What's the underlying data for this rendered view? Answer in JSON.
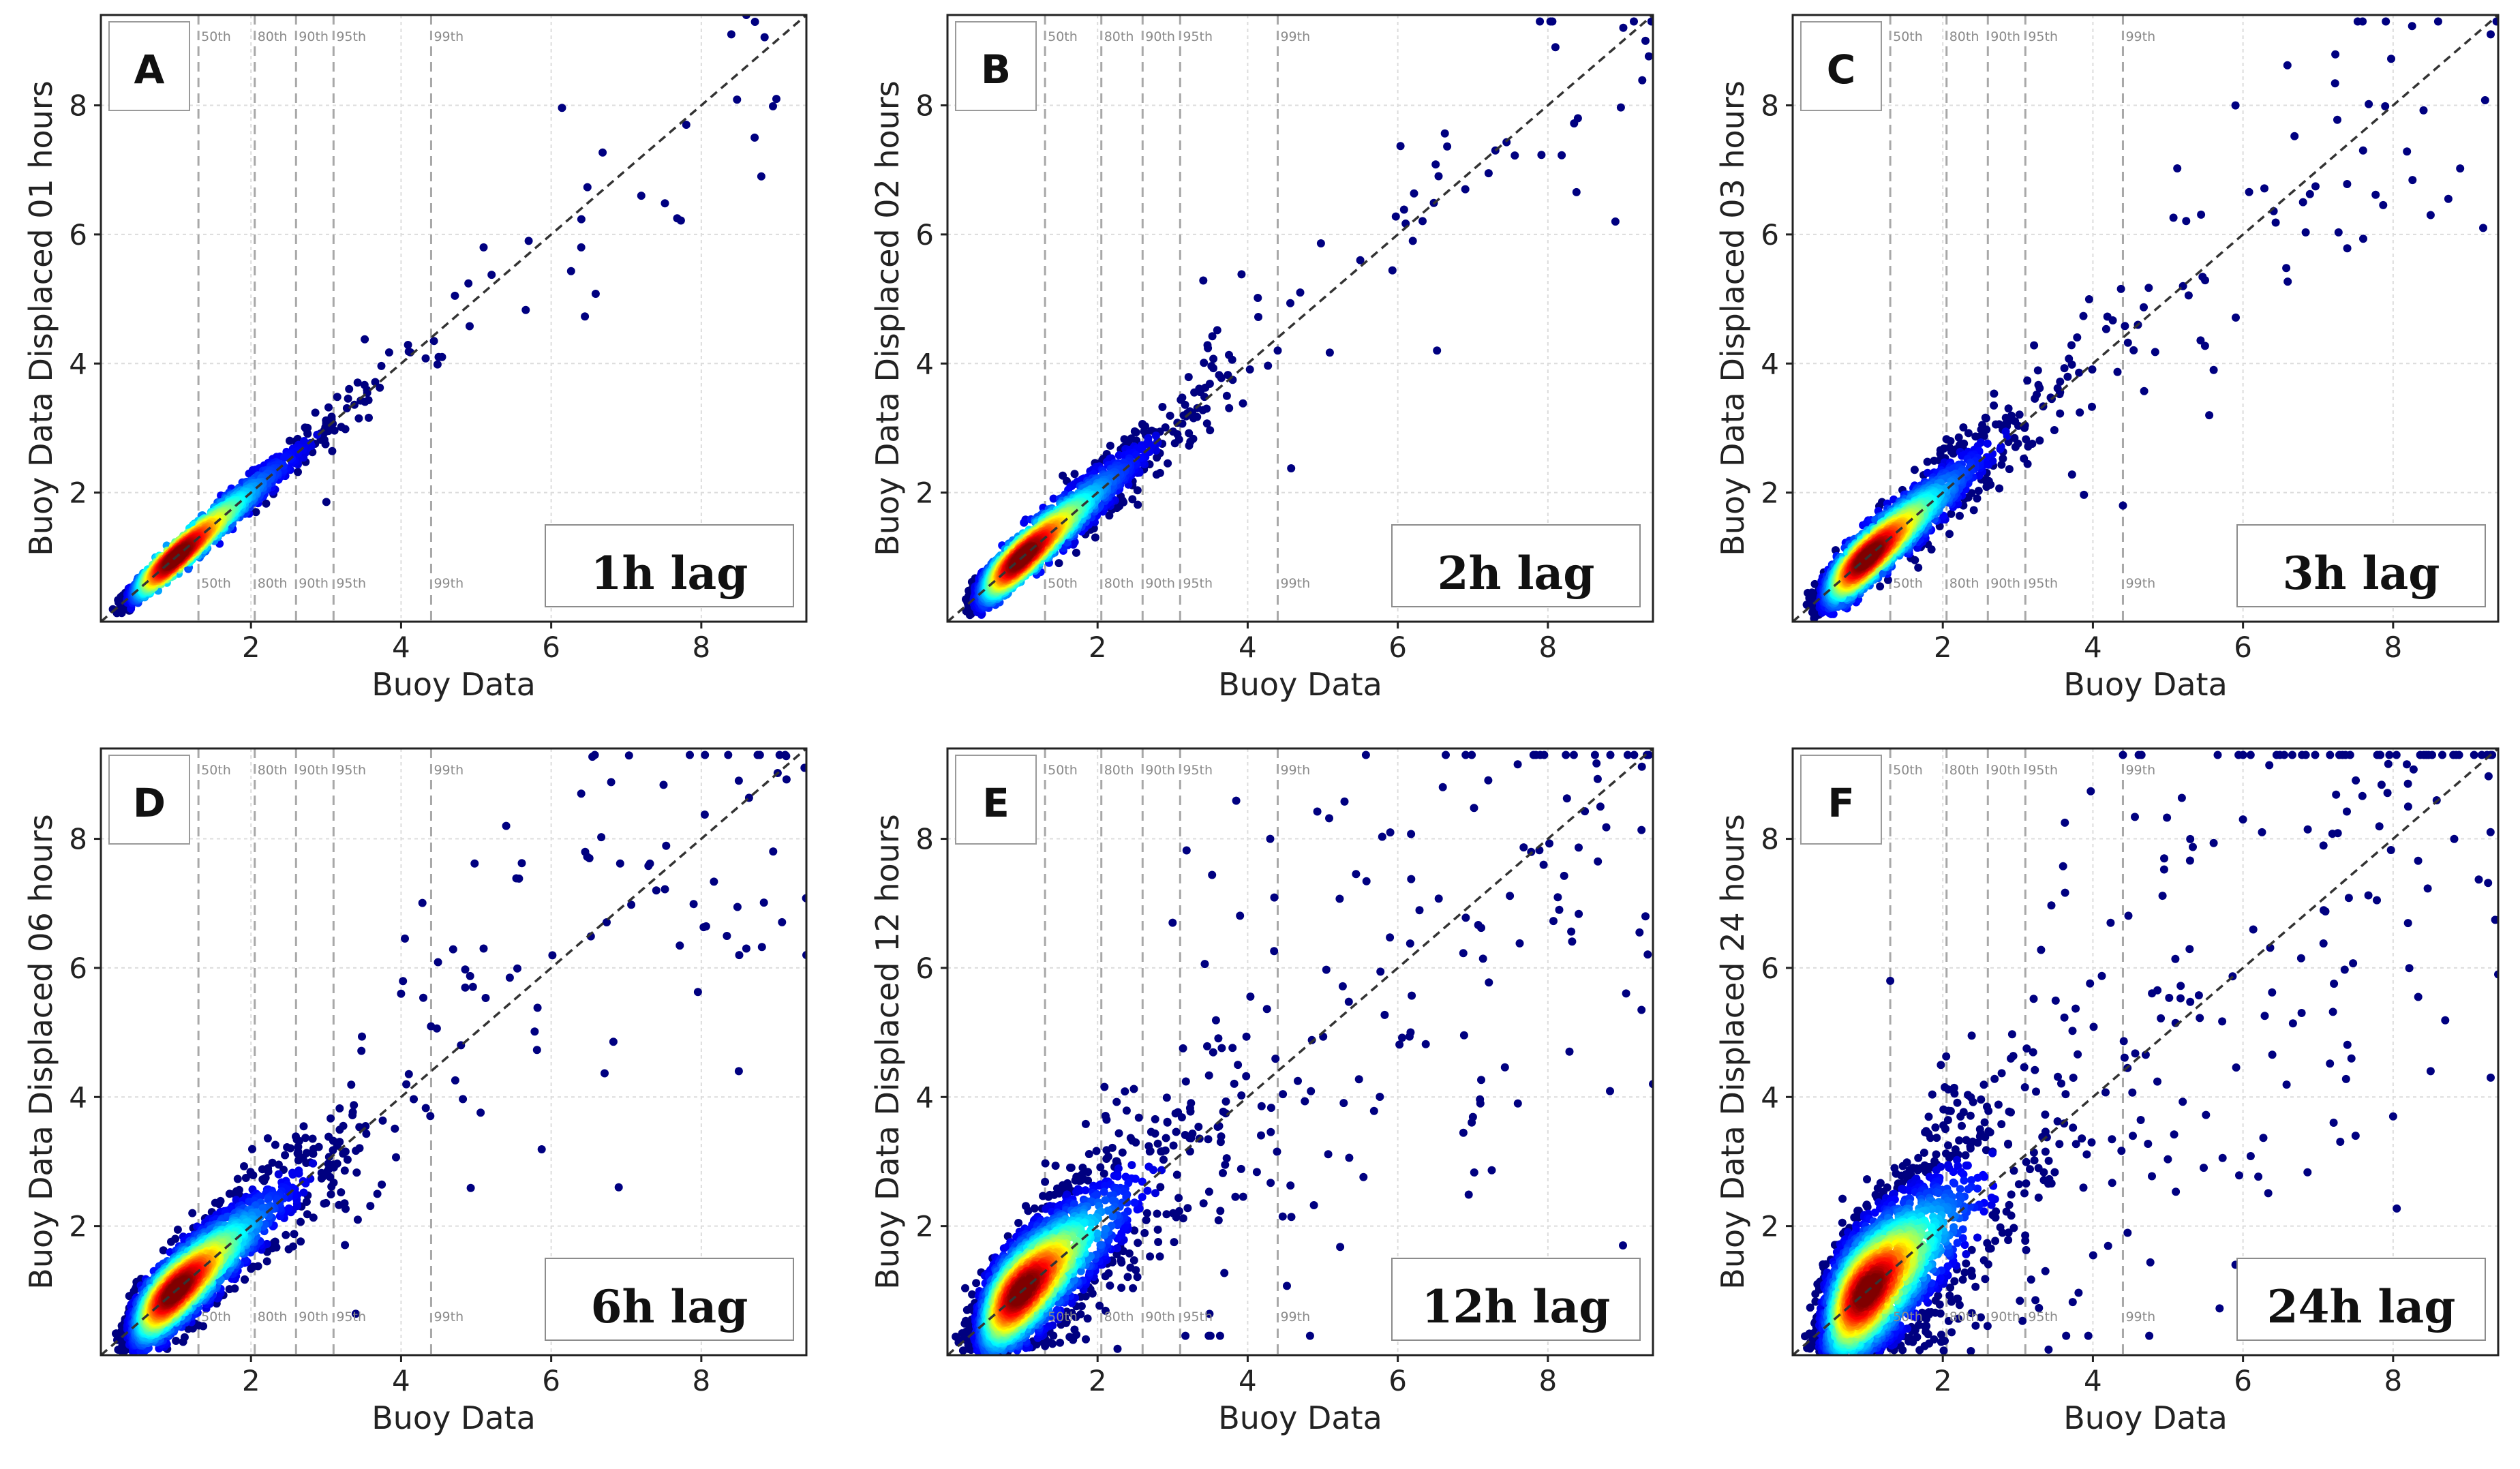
{
  "chart_data": [
    {
      "panel": "A",
      "type": "scatter",
      "lag_label": "1h lag",
      "xlabel": "Buoy Data",
      "ylabel": "Buoy Data Displaced 01 hours",
      "xlim": [
        0,
        9.4
      ],
      "ylim": [
        0,
        9.4
      ],
      "xticks": [
        2,
        4,
        6,
        8
      ],
      "yticks": [
        2,
        4,
        6,
        8
      ],
      "spread": 0.17,
      "outliers": 25,
      "percentiles": [
        {
          "label": "50th",
          "x": 1.3
        },
        {
          "label": "80th",
          "x": 2.05
        },
        {
          "label": "90th",
          "x": 2.6
        },
        {
          "label": "95th",
          "x": 3.1
        },
        {
          "label": "99th",
          "x": 4.4
        }
      ],
      "sample_points": [
        [
          8.6,
          9.4
        ],
        [
          8.4,
          9.1
        ],
        [
          9.0,
          8.1
        ],
        [
          8.8,
          6.9
        ],
        [
          7.8,
          7.7
        ],
        [
          7.2,
          6.6
        ],
        [
          6.4,
          5.8
        ],
        [
          5.7,
          5.9
        ],
        [
          5.1,
          5.8
        ],
        [
          4.5,
          4.1
        ]
      ]
    },
    {
      "panel": "B",
      "type": "scatter",
      "lag_label": "2h lag",
      "xlabel": "Buoy Data",
      "ylabel": "Buoy Data Displaced 02 hours",
      "xlim": [
        0,
        9.4
      ],
      "ylim": [
        0,
        9.4
      ],
      "xticks": [
        2,
        4,
        6,
        8
      ],
      "yticks": [
        2,
        4,
        6,
        8
      ],
      "spread": 0.28,
      "outliers": 45,
      "percentiles": [
        {
          "label": "50th",
          "x": 1.3
        },
        {
          "label": "80th",
          "x": 2.05
        },
        {
          "label": "90th",
          "x": 2.6
        },
        {
          "label": "95th",
          "x": 3.1
        },
        {
          "label": "99th",
          "x": 4.4
        }
      ],
      "sample_points": [
        [
          8.1,
          8.9
        ],
        [
          9.3,
          9.0
        ],
        [
          8.9,
          6.2
        ],
        [
          8.4,
          7.8
        ],
        [
          7.3,
          7.3
        ],
        [
          6.9,
          6.7
        ],
        [
          6.2,
          5.9
        ],
        [
          5.5,
          5.6
        ],
        [
          4.7,
          5.1
        ],
        [
          4.4,
          4.2
        ]
      ]
    },
    {
      "panel": "C",
      "type": "scatter",
      "lag_label": "3h lag",
      "xlabel": "Buoy Data",
      "ylabel": "Buoy Data Displaced 03 hours",
      "xlim": [
        0,
        9.4
      ],
      "ylim": [
        0,
        9.4
      ],
      "xticks": [
        2,
        4,
        6,
        8
      ],
      "yticks": [
        2,
        4,
        6,
        8
      ],
      "spread": 0.35,
      "outliers": 60,
      "percentiles": [
        {
          "label": "50th",
          "x": 1.3
        },
        {
          "label": "80th",
          "x": 2.05
        },
        {
          "label": "90th",
          "x": 2.6
        },
        {
          "label": "95th",
          "x": 3.1
        },
        {
          "label": "99th",
          "x": 4.4
        }
      ],
      "sample_points": [
        [
          8.6,
          9.3
        ],
        [
          9.3,
          9.1
        ],
        [
          9.2,
          6.1
        ],
        [
          8.5,
          6.3
        ],
        [
          7.6,
          7.3
        ],
        [
          6.8,
          6.5
        ],
        [
          5.9,
          8.0
        ],
        [
          5.2,
          5.2
        ],
        [
          4.6,
          4.6
        ],
        [
          4.4,
          1.8
        ]
      ]
    },
    {
      "panel": "D",
      "type": "scatter",
      "lag_label": "6h lag",
      "xlabel": "Buoy Data",
      "ylabel": "Buoy Data Displaced 06 hours",
      "xlim": [
        0,
        9.4
      ],
      "ylim": [
        0,
        9.4
      ],
      "xticks": [
        2,
        4,
        6,
        8
      ],
      "yticks": [
        2,
        4,
        6,
        8
      ],
      "spread": 0.5,
      "outliers": 90,
      "percentiles": [
        {
          "label": "50th",
          "x": 1.3
        },
        {
          "label": "80th",
          "x": 2.05
        },
        {
          "label": "90th",
          "x": 2.6
        },
        {
          "label": "95th",
          "x": 3.1
        },
        {
          "label": "99th",
          "x": 4.4
        }
      ],
      "sample_points": [
        [
          8.5,
          8.9
        ],
        [
          9.4,
          6.2
        ],
        [
          8.6,
          6.3
        ],
        [
          8.5,
          4.4
        ],
        [
          7.4,
          7.2
        ],
        [
          6.9,
          2.6
        ],
        [
          6.4,
          8.7
        ],
        [
          5.4,
          8.2
        ],
        [
          5.1,
          6.3
        ],
        [
          4.0,
          5.6
        ]
      ]
    },
    {
      "panel": "E",
      "type": "scatter",
      "lag_label": "12h lag",
      "xlabel": "Buoy Data",
      "ylabel": "Buoy Data Displaced 12 hours",
      "xlim": [
        0,
        9.4
      ],
      "ylim": [
        0,
        9.4
      ],
      "xticks": [
        2,
        4,
        6,
        8
      ],
      "yticks": [
        2,
        4,
        6,
        8
      ],
      "spread": 0.78,
      "outliers": 140,
      "percentiles": [
        {
          "label": "50th",
          "x": 1.3
        },
        {
          "label": "80th",
          "x": 2.05
        },
        {
          "label": "90th",
          "x": 2.6
        },
        {
          "label": "95th",
          "x": 3.1
        },
        {
          "label": "99th",
          "x": 4.4
        }
      ],
      "sample_points": [
        [
          8.7,
          8.5
        ],
        [
          9.3,
          6.8
        ],
        [
          9.4,
          4.2
        ],
        [
          9.0,
          1.7
        ],
        [
          7.6,
          3.9
        ],
        [
          7.1,
          3.9
        ],
        [
          6.6,
          8.8
        ],
        [
          5.9,
          8.1
        ],
        [
          4.3,
          8.0
        ],
        [
          3.0,
          6.7
        ]
      ]
    },
    {
      "panel": "F",
      "type": "scatter",
      "lag_label": "24h lag",
      "xlabel": "Buoy Data",
      "ylabel": "Buoy Data Displaced 24 hours",
      "xlim": [
        0,
        9.4
      ],
      "ylim": [
        0,
        9.4
      ],
      "xticks": [
        2,
        4,
        6,
        8
      ],
      "yticks": [
        2,
        4,
        6,
        8
      ],
      "spread": 1.05,
      "outliers": 180,
      "percentiles": [
        {
          "label": "50th",
          "x": 1.3
        },
        {
          "label": "80th",
          "x": 2.05
        },
        {
          "label": "90th",
          "x": 2.6
        },
        {
          "label": "95th",
          "x": 3.1
        },
        {
          "label": "99th",
          "x": 4.4
        }
      ],
      "sample_points": [
        [
          9.4,
          5.9
        ],
        [
          9.3,
          4.3
        ],
        [
          8.2,
          8.5
        ],
        [
          8.0,
          3.7
        ],
        [
          7.5,
          3.4
        ],
        [
          6.0,
          8.3
        ],
        [
          5.9,
          1.4
        ],
        [
          4.4,
          9.3
        ],
        [
          1.3,
          5.8
        ],
        [
          8.5,
          4.4
        ]
      ]
    }
  ]
}
